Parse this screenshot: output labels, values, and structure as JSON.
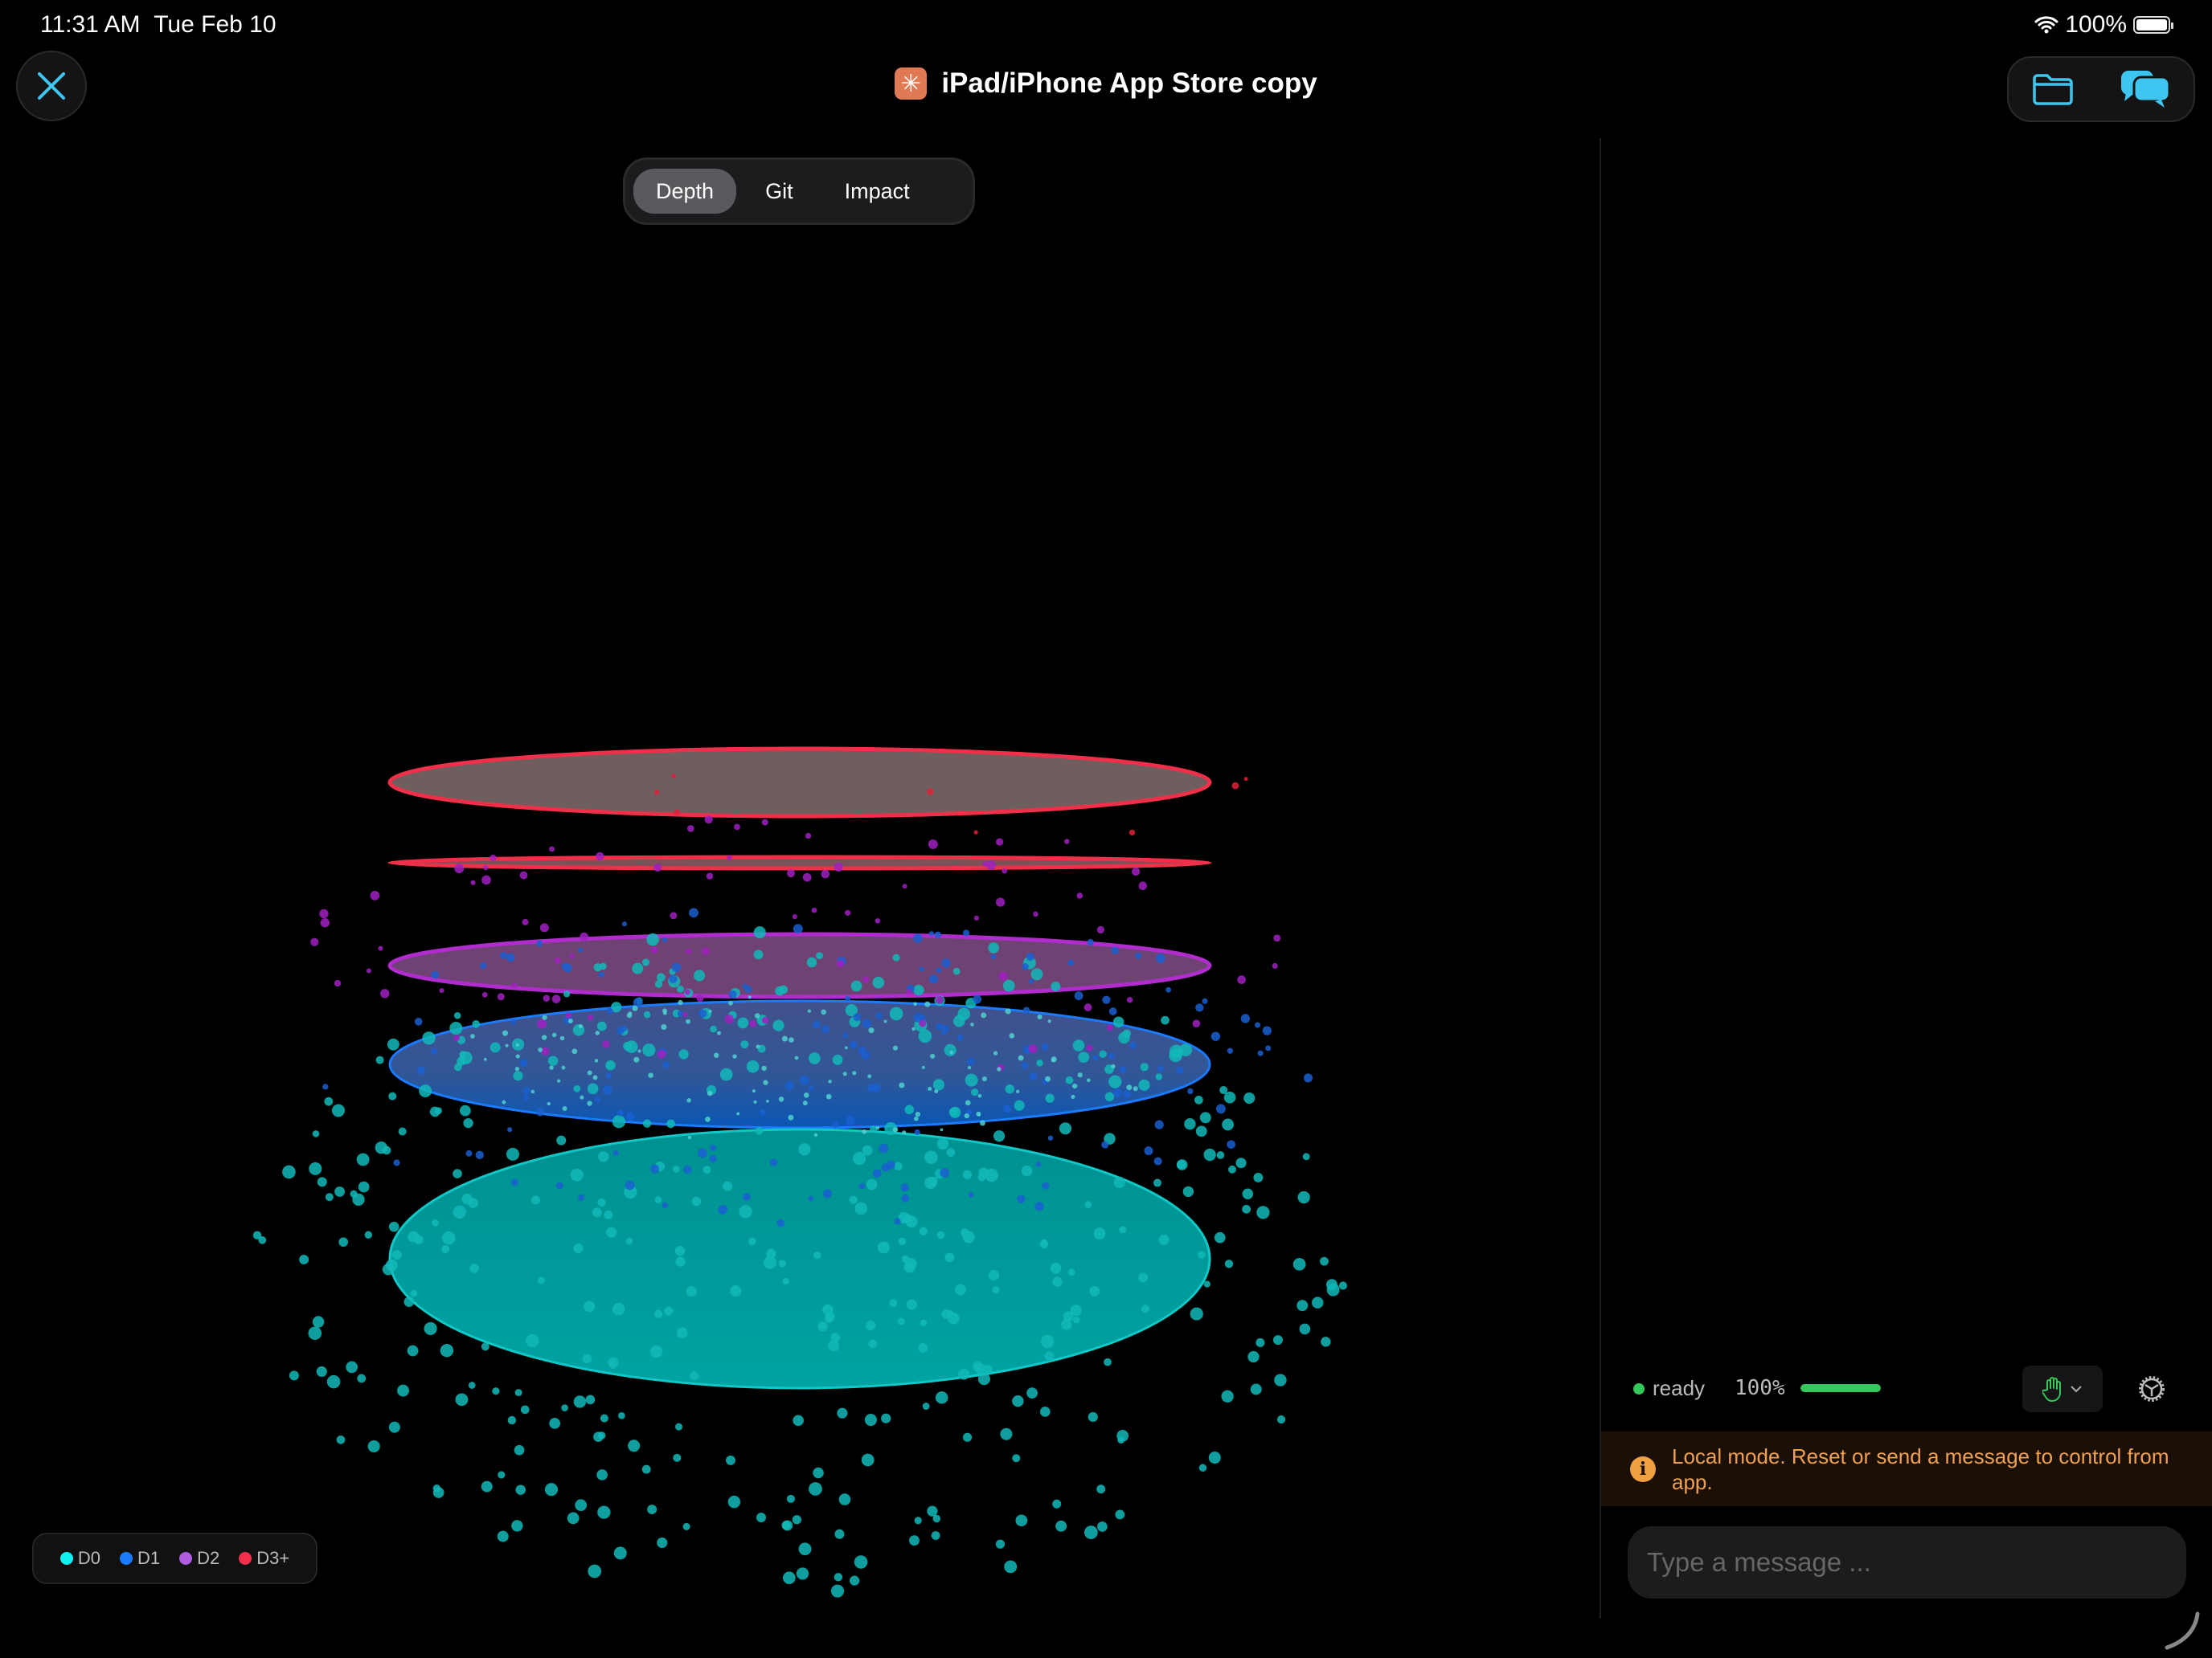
{
  "status_bar": {
    "time": "11:31 AM",
    "date": "Tue Feb 10",
    "battery": "100%",
    "wifi_icon": "wifi-icon",
    "battery_icon": "battery-icon"
  },
  "header": {
    "title": "iPad/iPhone App Store copy",
    "close_icon": "close-icon",
    "folder_icon": "folder-icon",
    "chat_icon": "chat-bubbles-icon",
    "accent": "#3ec6f0"
  },
  "view_tabs": {
    "items": [
      {
        "label": "Depth",
        "active": true
      },
      {
        "label": "Git",
        "active": false
      },
      {
        "label": "Impact",
        "active": false
      }
    ]
  },
  "legend": {
    "items": [
      {
        "label": "D0",
        "color": "#10f0f0"
      },
      {
        "label": "D1",
        "color": "#1a7bff"
      },
      {
        "label": "D2",
        "color": "#b05ce0"
      },
      {
        "label": "D3+",
        "color": "#f0304a"
      }
    ]
  },
  "layers": [
    {
      "depth": "D3+",
      "color": "#f0304a",
      "fill": "#7a6868"
    },
    {
      "depth": "D3+",
      "color": "#f0304a",
      "fill": "#8a5a60"
    },
    {
      "depth": "D2",
      "color": "#b02ccc",
      "fill": "#7a4a80"
    },
    {
      "depth": "D1",
      "color": "#1a7bff",
      "fill": "#3a5a9a"
    },
    {
      "depth": "D0",
      "color": "#10c8c8",
      "fill": "#009a9a"
    }
  ],
  "panel": {
    "status": "ready",
    "status_color": "#34c759",
    "progress_label": "100%",
    "progress": 1.0,
    "mode_icon": "hand-icon",
    "settings_icon": "gear-icon",
    "banner": "Local mode. Reset or send a message to control from app.",
    "banner_color": "#f0a050",
    "input_placeholder": "Type a message ..."
  }
}
